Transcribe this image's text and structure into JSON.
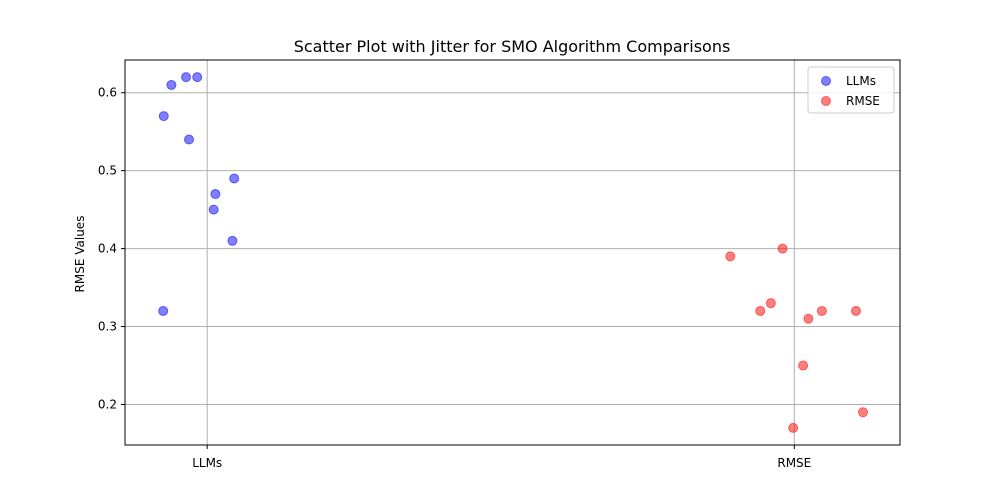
{
  "chart_data": {
    "type": "scatter",
    "title": "Scatter Plot with Jitter for SMO Algorithm Comparisons",
    "xlabel": "",
    "ylabel": "RMSE Values",
    "categories": [
      "LLMs",
      "RMSE"
    ],
    "xlim": [
      -0.14,
      1.18
    ],
    "ylim": [
      0.148,
      0.642
    ],
    "yticks": [
      0.2,
      0.3,
      0.4,
      0.5,
      0.6
    ],
    "ytick_labels": [
      "0.2",
      "0.3",
      "0.4",
      "0.5",
      "0.6"
    ],
    "grid": true,
    "legend_position": "top-right",
    "series": [
      {
        "name": "LLMs",
        "color": "#0000ff",
        "x": [
          -0.074,
          -0.061,
          -0.036,
          -0.017,
          -0.031,
          0.014,
          0.011,
          0.043,
          0.046,
          -0.075
        ],
        "y": [
          0.57,
          0.61,
          0.62,
          0.62,
          0.54,
          0.47,
          0.45,
          0.41,
          0.49,
          0.32
        ]
      },
      {
        "name": "RMSE",
        "color": "#ff0000",
        "x": [
          0.891,
          0.942,
          0.96,
          0.98,
          1.015,
          1.024,
          1.047,
          1.105,
          1.117,
          0.998
        ],
        "y": [
          0.39,
          0.32,
          0.33,
          0.4,
          0.25,
          0.31,
          0.32,
          0.32,
          0.19,
          0.17
        ]
      }
    ]
  }
}
